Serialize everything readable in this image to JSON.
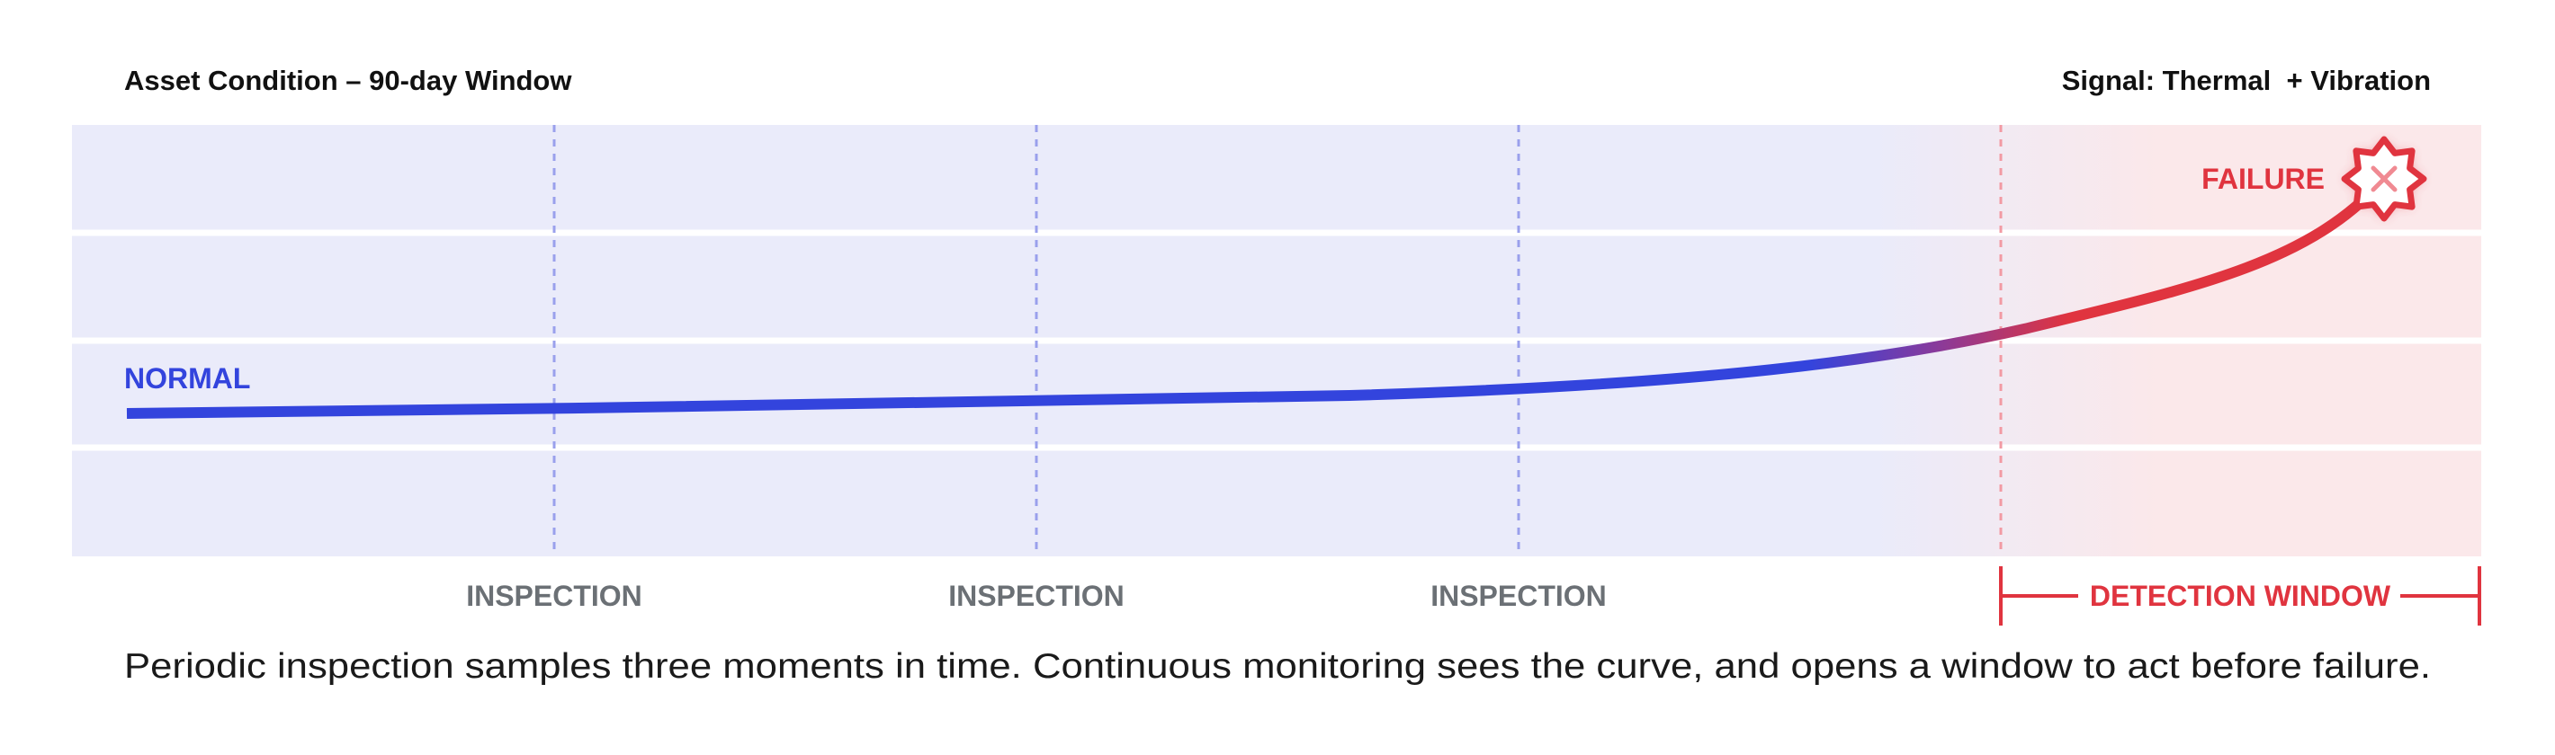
{
  "header": {
    "title": "Asset Condition – 90-day Window",
    "signal": "Signal: Thermal  + Vibration"
  },
  "states": {
    "normal": "NORMAL",
    "failure": "FAILURE"
  },
  "inspections": [
    "INSPECTION",
    "INSPECTION",
    "INSPECTION"
  ],
  "detection_window": "DETECTION WINDOW",
  "caption": "Periodic inspection samples three moments in time. Continuous monitoring sees the curve, and opens a window to act before failure."
}
